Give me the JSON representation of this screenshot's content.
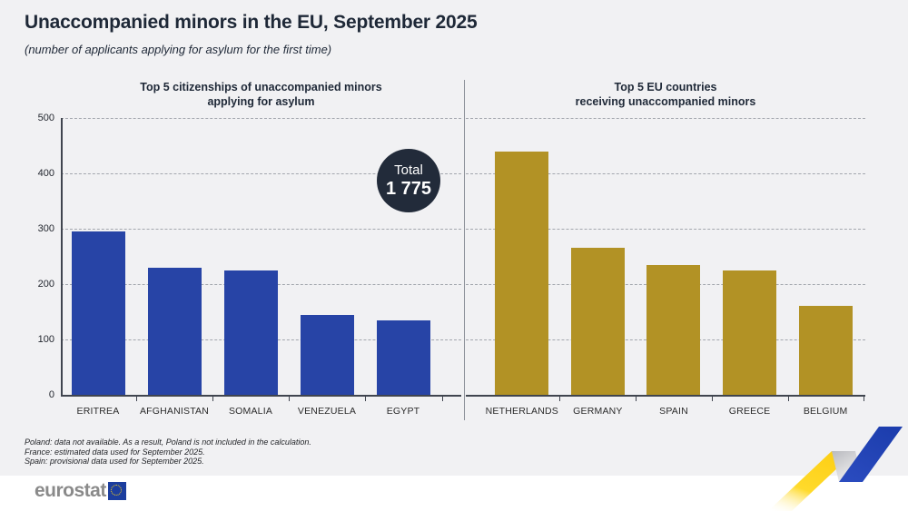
{
  "header": {
    "title": "Unaccompanied minors in the EU, September 2025",
    "subtitle": "(number of applicants applying for asylum for the first time)"
  },
  "total_badge": {
    "label": "Total",
    "value": "1 775"
  },
  "chart_data": [
    {
      "type": "bar",
      "title": "Top 5 citizenships of unaccompanied minors\napplying for asylum",
      "categories": [
        "ERITREA",
        "AFGHANISTAN",
        "SOMALIA",
        "VENEZUELA",
        "EGYPT"
      ],
      "values": [
        295,
        230,
        225,
        145,
        135
      ],
      "bar_color": "#2744a6",
      "ylim": [
        0,
        500
      ],
      "yticks": [
        "0",
        "100",
        "200",
        "300",
        "400",
        "500"
      ],
      "grid": "horizontal-dashed",
      "legend": "none"
    },
    {
      "type": "bar",
      "title": "Top 5 EU countries\nreceiving unaccompanied minors",
      "categories": [
        "NETHERLANDS",
        "GERMANY",
        "SPAIN",
        "GREECE",
        "BELGIUM"
      ],
      "values": [
        440,
        265,
        235,
        225,
        160
      ],
      "bar_color": "#b29225",
      "ylim": [
        0,
        500
      ],
      "yticks": [
        "0",
        "100",
        "200",
        "300",
        "400",
        "500"
      ],
      "grid": "horizontal-dashed",
      "legend": "none"
    }
  ],
  "footnotes": [
    "Poland: data not available. As a result, Poland is not included in the calculation.",
    "France: estimated  data used for September 2025.",
    "Spain: provisional data used for September 2025."
  ],
  "footer": {
    "logo_text": "eurostat"
  },
  "colors": {
    "background": "#f1f1f3",
    "footer_background": "#ffffff",
    "left_bars": "#2744a6",
    "right_bars": "#b29225",
    "badge": "#222b3a",
    "ribbon_yellow": "#fdd02c",
    "ribbon_blue": "#2446b4"
  }
}
